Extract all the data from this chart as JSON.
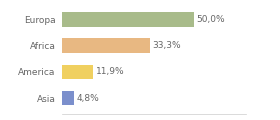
{
  "categories": [
    "Europa",
    "Africa",
    "America",
    "Asia"
  ],
  "values": [
    50.0,
    33.3,
    11.9,
    4.8
  ],
  "labels": [
    "50,0%",
    "33,3%",
    "11,9%",
    "4,8%"
  ],
  "bar_colors": [
    "#a8bb8a",
    "#e8b882",
    "#f0d060",
    "#7b8fcc"
  ],
  "background_color": "#ffffff",
  "xlim": [
    0,
    70
  ],
  "bar_height": 0.55,
  "label_fontsize": 6.5,
  "tick_fontsize": 6.5
}
